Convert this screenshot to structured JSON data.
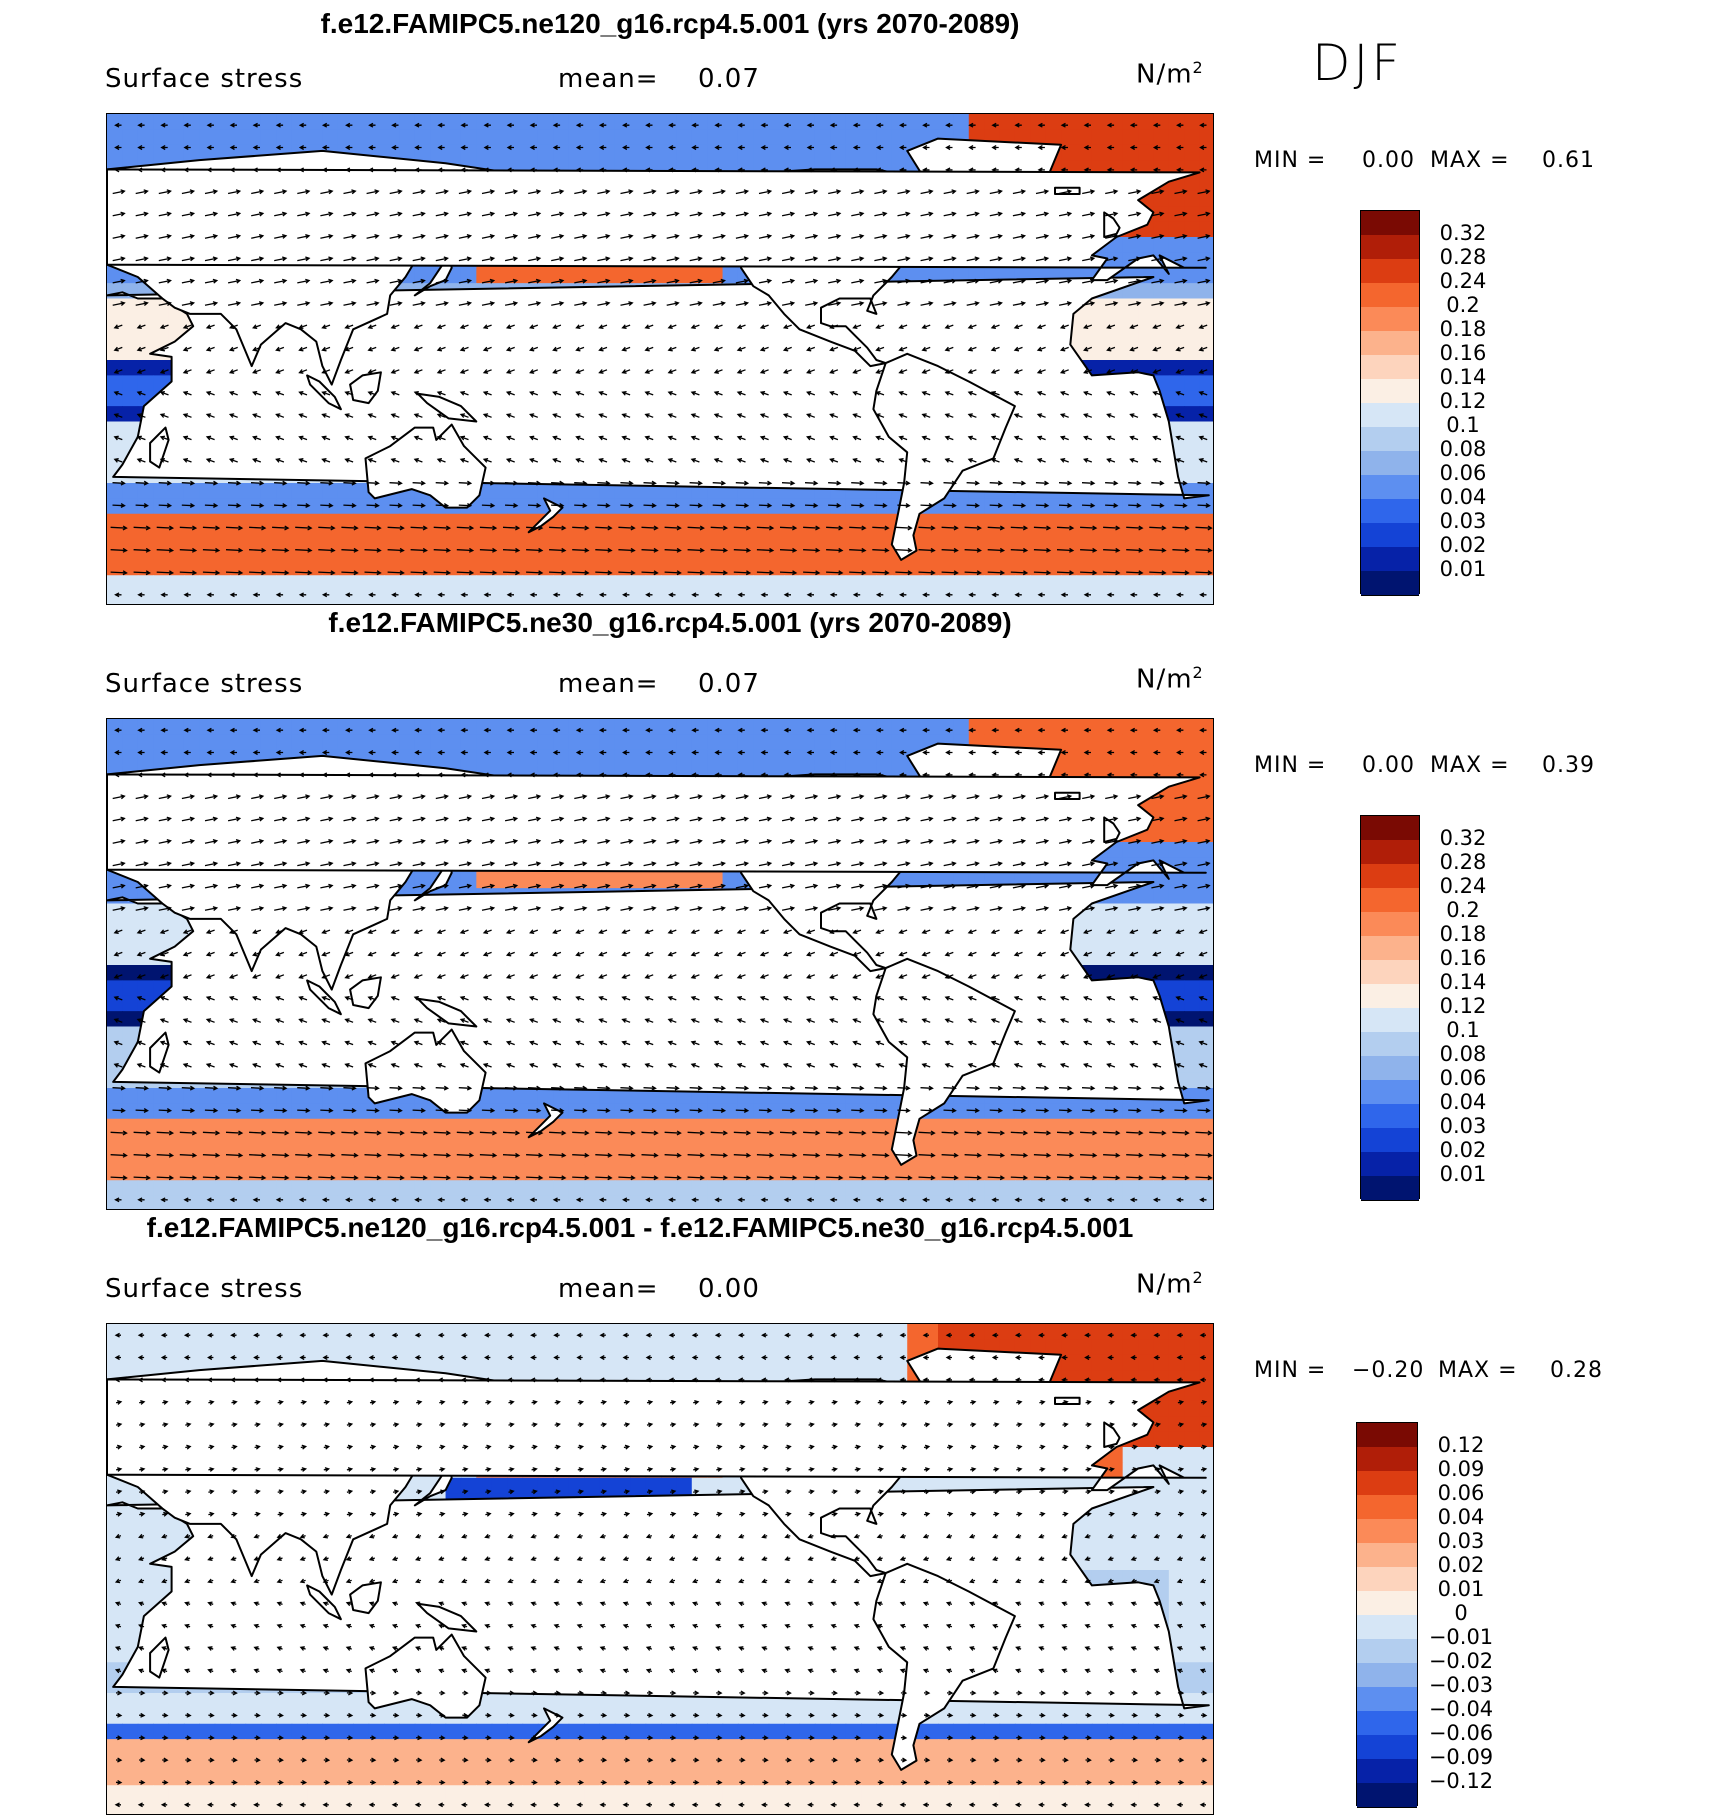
{
  "season": "DJF",
  "panels": [
    {
      "title": "f.e12.FAMIPC5.ne120_g16.rcp4.5.001 (yrs 2070-2089)",
      "variable": "Surface stress",
      "mean_label": "mean=",
      "mean_value": "0.07",
      "units": "N/m",
      "units_exp": "2",
      "min_label": "MIN =",
      "min_value": "0.00",
      "max_label": "MAX =",
      "max_value": "0.61",
      "colorbar_labels": [
        "0.32",
        "0.28",
        "0.24",
        "0.2",
        "0.18",
        "0.16",
        "0.14",
        "0.12",
        "0.1",
        "0.08",
        "0.06",
        "0.04",
        "0.03",
        "0.02",
        "0.01"
      ],
      "colorbar_colors": [
        "#7a0a03",
        "#b01e08",
        "#dc3d12",
        "#f4662e",
        "#fb8a58",
        "#fcb28c",
        "#fdd4bd",
        "#fbefe4",
        "#d6e6f6",
        "#b3ceef",
        "#8fb3eb",
        "#5d8ff0",
        "#2f66eb",
        "#1443d6",
        "#0622a8",
        "#001470"
      ],
      "field": "ne120"
    },
    {
      "title": "f.e12.FAMIPC5.ne30_g16.rcp4.5.001 (yrs 2070-2089)",
      "variable": "Surface stress",
      "mean_label": "mean=",
      "mean_value": "0.07",
      "units": "N/m",
      "units_exp": "2",
      "min_label": "MIN =",
      "min_value": "0.00",
      "max_label": "MAX =",
      "max_value": "0.39",
      "colorbar_labels": [
        "0.32",
        "0.28",
        "0.24",
        "0.2",
        "0.18",
        "0.16",
        "0.14",
        "0.12",
        "0.1",
        "0.08",
        "0.06",
        "0.04",
        "0.03",
        "0.02",
        "0.01"
      ],
      "colorbar_colors": [
        "#7a0a03",
        "#b01e08",
        "#dc3d12",
        "#f4662e",
        "#fb8a58",
        "#fcb28c",
        "#fdd4bd",
        "#fbefe4",
        "#d6e6f6",
        "#b3ceef",
        "#8fb3eb",
        "#5d8ff0",
        "#2f66eb",
        "#1443d6",
        "#0622a8",
        "#001470"
      ],
      "field": "ne30"
    },
    {
      "title": "f.e12.FAMIPC5.ne120_g16.rcp4.5.001 - f.e12.FAMIPC5.ne30_g16.rcp4.5.001",
      "variable": "Surface stress",
      "mean_label": "mean=",
      "mean_value": "0.00",
      "units": "N/m",
      "units_exp": "2",
      "min_label": "MIN =",
      "min_value": "−0.20",
      "max_label": "MAX =",
      "max_value": "0.28",
      "colorbar_labels": [
        "0.12",
        "0.09",
        "0.06",
        "0.04",
        "0.03",
        "0.02",
        "0.01",
        "0",
        "−0.01",
        "−0.02",
        "−0.03",
        "−0.04",
        "−0.06",
        "−0.09",
        "−0.12"
      ],
      "colorbar_colors": [
        "#7a0a03",
        "#b01e08",
        "#dc3d12",
        "#f4662e",
        "#fb8a58",
        "#fcb28c",
        "#fdd4bd",
        "#fbefe4",
        "#d6e6f6",
        "#b3ceef",
        "#8fb3eb",
        "#5d8ff0",
        "#2f66eb",
        "#1443d6",
        "#0622a8",
        "#001470"
      ],
      "field": "diff"
    }
  ]
}
